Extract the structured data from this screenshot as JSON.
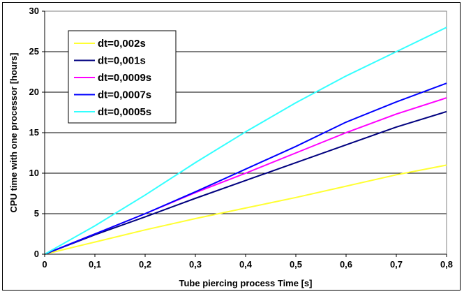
{
  "chart_data": {
    "type": "line",
    "xlabel": "Tube piercing process Time [s]",
    "ylabel": "CPU time with one processor [hours]",
    "xlim": [
      0,
      0.8
    ],
    "ylim": [
      0,
      30
    ],
    "xticks": [
      0,
      0.1,
      0.2,
      0.3,
      0.4,
      0.5,
      0.6,
      0.7,
      0.8
    ],
    "xtick_labels": [
      "0",
      "0,1",
      "0,2",
      "0,3",
      "0,4",
      "0,5",
      "0,6",
      "0,7",
      "0,8"
    ],
    "yticks": [
      0,
      5,
      10,
      15,
      20,
      25,
      30
    ],
    "ytick_labels": [
      "0",
      "5",
      "10",
      "15",
      "20",
      "25",
      "30"
    ],
    "grid": "horizontal",
    "legend_position": "top-left",
    "series": [
      {
        "name": "dt=0,002s",
        "color": "#ffff33",
        "points": [
          [
            0,
            0
          ],
          [
            0.1,
            1.5
          ],
          [
            0.2,
            3.0
          ],
          [
            0.3,
            4.4
          ],
          [
            0.4,
            5.7
          ],
          [
            0.5,
            7.0
          ],
          [
            0.6,
            8.4
          ],
          [
            0.7,
            9.8
          ],
          [
            0.8,
            11.0
          ]
        ]
      },
      {
        "name": "dt=0,001s",
        "color": "#00007f",
        "points": [
          [
            0,
            0
          ],
          [
            0.1,
            2.4
          ],
          [
            0.2,
            4.6
          ],
          [
            0.3,
            6.9
          ],
          [
            0.4,
            9.1
          ],
          [
            0.5,
            11.3
          ],
          [
            0.6,
            13.5
          ],
          [
            0.7,
            15.7
          ],
          [
            0.8,
            17.6
          ]
        ]
      },
      {
        "name": "dt=0,0009s",
        "color": "#ff00ff",
        "points": [
          [
            0,
            0
          ],
          [
            0.1,
            2.5
          ],
          [
            0.2,
            5.0
          ],
          [
            0.3,
            7.6
          ],
          [
            0.4,
            10.0
          ],
          [
            0.5,
            12.5
          ],
          [
            0.6,
            15.0
          ],
          [
            0.7,
            17.3
          ],
          [
            0.8,
            19.3
          ]
        ]
      },
      {
        "name": "dt=0,0007s",
        "color": "#0000ff",
        "points": [
          [
            0,
            0
          ],
          [
            0.1,
            2.5
          ],
          [
            0.2,
            5.0
          ],
          [
            0.3,
            7.7
          ],
          [
            0.4,
            10.5
          ],
          [
            0.5,
            13.3
          ],
          [
            0.6,
            16.3
          ],
          [
            0.7,
            18.8
          ],
          [
            0.8,
            21.1
          ]
        ]
      },
      {
        "name": "dt=0,0005s",
        "color": "#33ffff",
        "points": [
          [
            0,
            0
          ],
          [
            0.1,
            3.5
          ],
          [
            0.2,
            7.3
          ],
          [
            0.3,
            11.3
          ],
          [
            0.4,
            15.1
          ],
          [
            0.5,
            18.7
          ],
          [
            0.6,
            22.0
          ],
          [
            0.7,
            25.0
          ],
          [
            0.8,
            28.0
          ]
        ]
      }
    ]
  }
}
